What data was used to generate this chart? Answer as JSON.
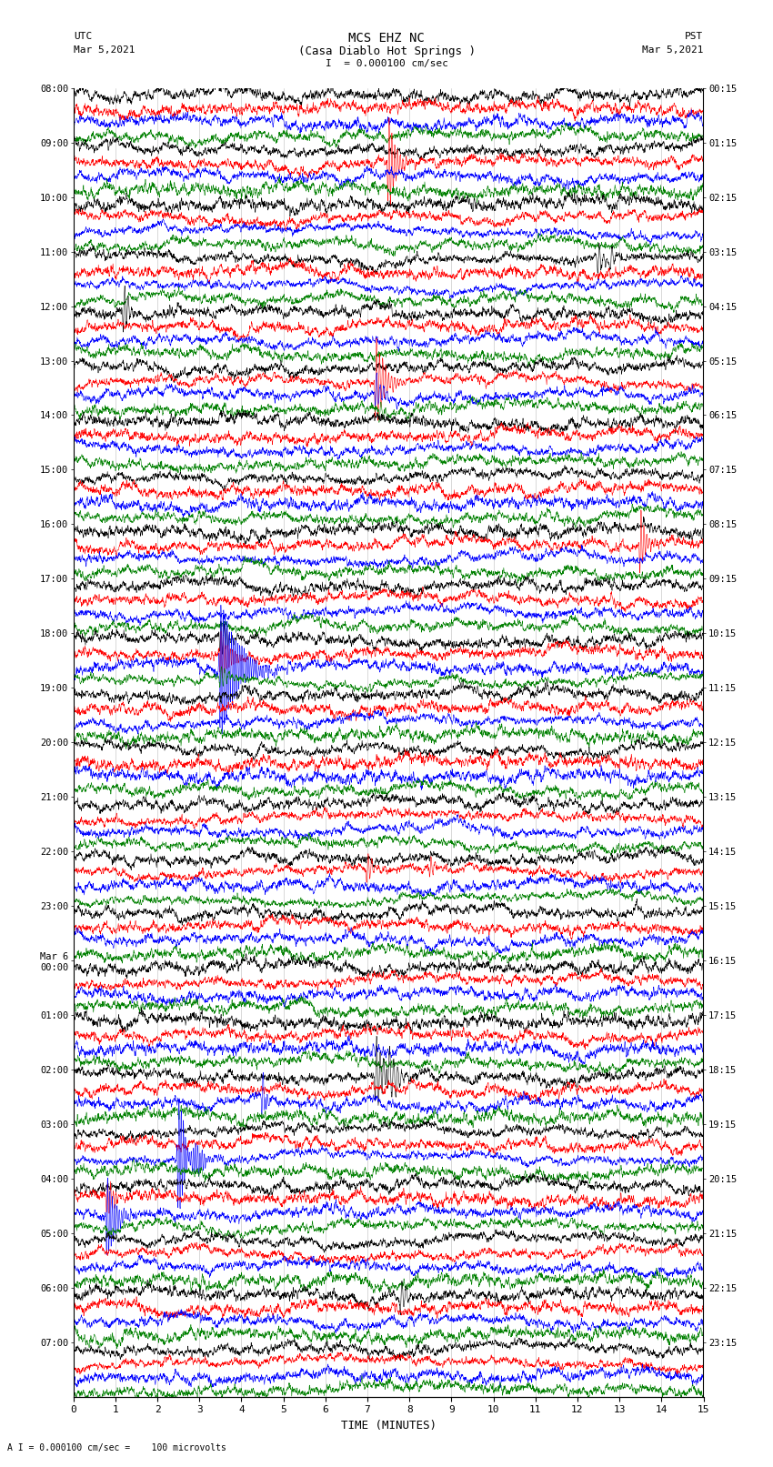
{
  "title_line1": "MCS EHZ NC",
  "title_line2": "(Casa Diablo Hot Springs )",
  "scale_label": "I  = 0.000100 cm/sec",
  "bottom_label": "A I = 0.000100 cm/sec =    100 microvolts",
  "xlabel": "TIME (MINUTES)",
  "left_times": [
    "08:00",
    "09:00",
    "10:00",
    "11:00",
    "12:00",
    "13:00",
    "14:00",
    "15:00",
    "16:00",
    "17:00",
    "18:00",
    "19:00",
    "20:00",
    "21:00",
    "22:00",
    "23:00",
    "Mar 6\n00:00",
    "01:00",
    "02:00",
    "03:00",
    "04:00",
    "05:00",
    "06:00",
    "07:00"
  ],
  "right_times": [
    "00:15",
    "01:15",
    "02:15",
    "03:15",
    "04:15",
    "05:15",
    "06:15",
    "07:15",
    "08:15",
    "09:15",
    "10:15",
    "11:15",
    "12:15",
    "13:15",
    "14:15",
    "15:15",
    "16:15",
    "17:15",
    "18:15",
    "19:15",
    "20:15",
    "21:15",
    "22:15",
    "23:15"
  ],
  "num_row_groups": 24,
  "traces_per_group": 4,
  "colors": [
    "black",
    "red",
    "blue",
    "green"
  ],
  "noise_amplitude": 0.28,
  "fig_width": 8.5,
  "fig_height": 16.13,
  "bg_color": "white",
  "x_min": 0,
  "x_max": 15,
  "x_ticks": [
    0,
    1,
    2,
    3,
    4,
    5,
    6,
    7,
    8,
    9,
    10,
    11,
    12,
    13,
    14,
    15
  ],
  "vline_color": "#aaaaaa",
  "vline_lw": 0.4,
  "trace_lw": 0.4,
  "N_points": 3000
}
